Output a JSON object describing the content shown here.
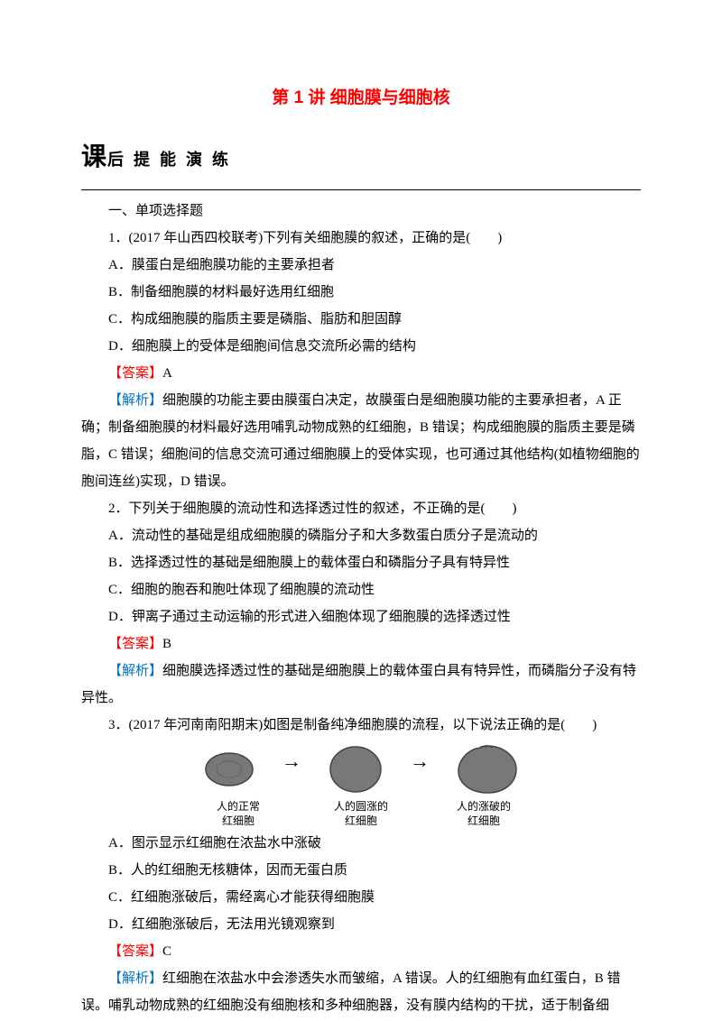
{
  "title": "第 1 讲 细胞膜与细胞核",
  "section_header_big": "课",
  "section_header_small": "后 提 能 演 练",
  "part_heading": "一、单项选择题",
  "q1": {
    "stem": "1．(2017 年山西四校联考)下列有关细胞膜的叙述，正确的是(　　)",
    "a": "A．膜蛋白是细胞膜功能的主要承担者",
    "b": "B．制备细胞膜的材料最好选用红细胞",
    "c": "C．构成细胞膜的脂质主要是磷脂、脂肪和胆固醇",
    "d": "D．细胞膜上的受体是细胞间信息交流所必需的结构",
    "ans_label": "【答案】",
    "ans": "A",
    "exp_label": "【解析】",
    "exp": "细胞膜的功能主要由膜蛋白决定，故膜蛋白是细胞膜功能的主要承担者，A 正确；制备细胞膜的材料最好选用哺乳动物成熟的红细胞，B 错误；构成细胞膜的脂质主要是磷脂，C 错误；细胞间的信息交流可通过细胞膜上的受体实现，也可通过其他结构(如植物细胞的胞间连丝)实现，D 错误。"
  },
  "q2": {
    "stem": "2．下列关于细胞膜的流动性和选择透过性的叙述，不正确的是(　　)",
    "a": "A．流动性的基础是组成细胞膜的磷脂分子和大多数蛋白质分子是流动的",
    "b": "B．选择透过性的基础是细胞膜上的载体蛋白和磷脂分子具有特异性",
    "c": "C．细胞的胞吞和胞吐体现了细胞膜的流动性",
    "d": "D．钾离子通过主动运输的形式进入细胞体现了细胞膜的选择透过性",
    "ans_label": "【答案】",
    "ans": "B",
    "exp_label": "【解析】",
    "exp": "细胞膜选择透过性的基础是细胞膜上的载体蛋白具有特异性，而磷脂分子没有特异性。"
  },
  "q3": {
    "stem": "3．(2017 年河南南阳期末)如图是制备纯净细胞膜的流程，以下说法正确的是(　　)",
    "cap1": "人的正常\n红细胞",
    "cap2": "人的圆涨的\n红细胞",
    "cap3": "人的涨破的\n红细胞",
    "a": "A．图示显示红细胞在浓盐水中涨破",
    "b": "B．人的红细胞无核糖体，因而无蛋白质",
    "c": "C．红细胞涨破后，需经离心才能获得细胞膜",
    "d": "D．红细胞涨破后，无法用光镜观察到",
    "ans_label": "【答案】",
    "ans": "C",
    "exp_label": "【解析】",
    "exp": "红细胞在浓盐水中会渗透失水而皱缩，A 错误。人的红细胞有血红蛋白，B 错误。哺乳动物成熟的红细胞没有细胞核和多种细胞器，没有膜内结构的干扰，适于制备细"
  },
  "cell_fill": "#787878",
  "cell_stroke": "#444444"
}
